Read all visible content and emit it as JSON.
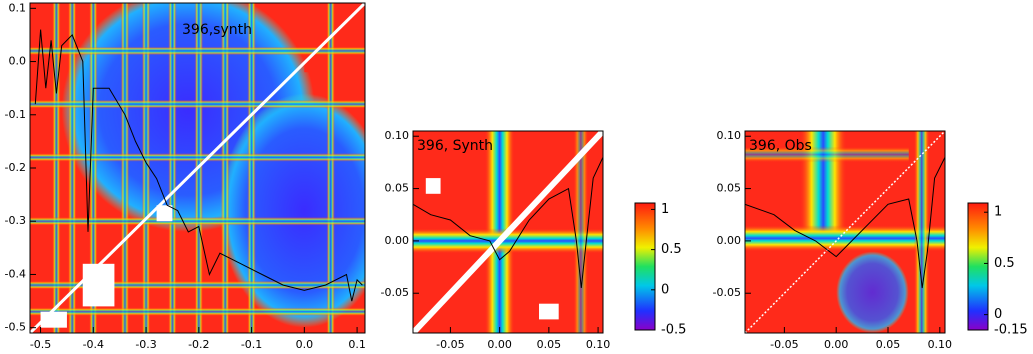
{
  "chart_data": [
    {
      "type": "heatmap",
      "title": "396,synth",
      "xlim": [
        -0.52,
        0.115
      ],
      "ylim": [
        -0.51,
        0.11
      ],
      "xticks": [
        -0.5,
        -0.4,
        -0.3,
        -0.2,
        -0.1,
        {
          "value": 0.0,
          "label": "0.0"
        },
        0.1
      ],
      "yticks": [
        0.1,
        {
          "value": 0.0,
          "label": "0.0"
        },
        -0.1,
        -0.2,
        -0.3,
        -0.4,
        -0.5
      ],
      "line_color": "#000000",
      "x": [
        -0.51,
        -0.5,
        -0.49,
        -0.48,
        -0.47,
        -0.46,
        -0.44,
        -0.42,
        -0.41,
        -0.4,
        -0.37,
        -0.34,
        -0.32,
        -0.3,
        -0.28,
        -0.26,
        -0.24,
        -0.22,
        -0.2,
        -0.18,
        -0.16,
        -0.12,
        -0.08,
        -0.04,
        0.0,
        0.04,
        0.08,
        0.09,
        0.1,
        0.11
      ],
      "values": [
        -0.08,
        0.06,
        -0.05,
        0.04,
        -0.06,
        0.03,
        0.05,
        0.0,
        -0.32,
        -0.05,
        -0.05,
        -0.1,
        -0.15,
        -0.19,
        -0.22,
        -0.27,
        -0.28,
        -0.32,
        -0.31,
        -0.4,
        -0.36,
        -0.38,
        -0.4,
        -0.42,
        -0.43,
        -0.42,
        -0.4,
        -0.45,
        -0.41,
        -0.42
      ]
    },
    {
      "type": "heatmap",
      "title": "396, Synth",
      "xlim": [
        -0.088,
        0.105
      ],
      "ylim": [
        -0.088,
        0.105
      ],
      "xticks": [
        -0.05,
        {
          "value": 0.0,
          "label": "0.00"
        },
        0.05,
        {
          "value": 0.1,
          "label": "0.10"
        }
      ],
      "yticks": [
        {
          "value": 0.1,
          "label": "0.10"
        },
        0.05,
        {
          "value": 0.0,
          "label": "0.00"
        },
        -0.05
      ],
      "line_color": "#000000",
      "x": [
        -0.088,
        -0.07,
        -0.05,
        -0.03,
        -0.01,
        0.0,
        0.01,
        0.03,
        0.05,
        0.07,
        0.078,
        0.083,
        0.088,
        0.095,
        0.105
      ],
      "values": [
        0.035,
        0.025,
        0.02,
        0.005,
        0.0,
        -0.018,
        -0.01,
        0.02,
        0.04,
        0.05,
        0.0,
        -0.045,
        0.0,
        0.06,
        0.08
      ],
      "colorbar": {
        "lim": [
          -0.5,
          1.08
        ],
        "ticks": [
          1,
          0.5,
          0,
          -0.5
        ]
      }
    },
    {
      "type": "heatmap",
      "title": "396, Obs",
      "xlim": [
        -0.088,
        0.105
      ],
      "ylim": [
        -0.088,
        0.105
      ],
      "xticks": [
        -0.05,
        {
          "value": 0.0,
          "label": "0.00"
        },
        0.05,
        {
          "value": 0.1,
          "label": "0.10"
        }
      ],
      "yticks": [
        {
          "value": 0.1,
          "label": "0.10"
        },
        0.05,
        {
          "value": 0.0,
          "label": "0.00"
        },
        -0.05
      ],
      "line_color": "#000000",
      "x": [
        -0.088,
        -0.06,
        -0.04,
        -0.02,
        0.0,
        0.01,
        0.03,
        0.05,
        0.07,
        0.078,
        0.083,
        0.088,
        0.095,
        0.105
      ],
      "values": [
        0.035,
        0.025,
        0.01,
        0.0,
        -0.015,
        -0.005,
        0.015,
        0.035,
        0.04,
        0.0,
        -0.045,
        -0.01,
        0.06,
        0.08
      ],
      "colorbar": {
        "lim": [
          -0.15,
          1.09
        ],
        "ticks": [
          1,
          0.5,
          0,
          -0.15
        ]
      }
    }
  ]
}
